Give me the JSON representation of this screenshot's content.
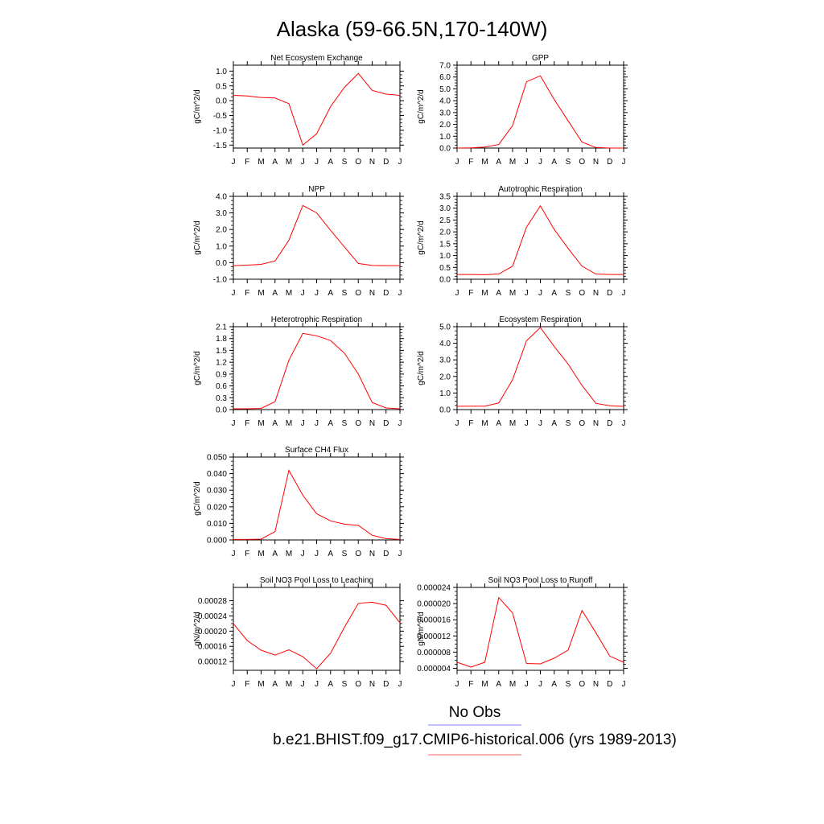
{
  "figure": {
    "title": "Alaska (59-66.5N,170-140W)",
    "legend": [
      {
        "label": "No Obs",
        "color": "#8080ff"
      },
      {
        "label": "b.e21.BHIST.f09_g17.CMIP6-historical.006 (yrs 1989-2013)",
        "color": "#ff6060"
      }
    ]
  },
  "chart_data": [
    {
      "type": "line",
      "title": "Net Ecosystem Exchange",
      "ylabel": "gC/m^2/d",
      "x": [
        "J",
        "F",
        "M",
        "A",
        "M",
        "J",
        "J",
        "A",
        "S",
        "O",
        "N",
        "D",
        "J"
      ],
      "ylim": [
        -1.6,
        1.2
      ],
      "yticks": [
        -1.5,
        -1.0,
        -0.5,
        0.0,
        0.5,
        1.0
      ],
      "ytick_labels": [
        "-1.5",
        "-1.0",
        "-0.5",
        "0.0",
        "0.5",
        "1.0"
      ],
      "series": [
        {
          "color": "#ff0000",
          "values": [
            0.18,
            0.16,
            0.11,
            0.09,
            -0.1,
            -1.5,
            -1.12,
            -0.2,
            0.45,
            0.92,
            0.35,
            0.22,
            0.18
          ]
        }
      ]
    },
    {
      "type": "line",
      "title": "GPP",
      "ylabel": "gC/m^2/d",
      "x": [
        "J",
        "F",
        "M",
        "A",
        "M",
        "J",
        "J",
        "A",
        "S",
        "O",
        "N",
        "D",
        "J"
      ],
      "ylim": [
        0.0,
        7.0
      ],
      "yticks": [
        0,
        1,
        2,
        3,
        4,
        5,
        6,
        7
      ],
      "ytick_labels": [
        "0.0",
        "1.0",
        "2.0",
        "3.0",
        "4.0",
        "5.0",
        "6.0",
        "7.0"
      ],
      "series": [
        {
          "color": "#ff0000",
          "values": [
            0.0,
            0.02,
            0.08,
            0.3,
            1.9,
            5.6,
            6.1,
            4.1,
            2.3,
            0.5,
            0.05,
            0.0,
            0.0
          ]
        }
      ]
    },
    {
      "type": "line",
      "title": "NPP",
      "ylabel": "gC/m^2/d",
      "x": [
        "J",
        "F",
        "M",
        "A",
        "M",
        "J",
        "J",
        "A",
        "S",
        "O",
        "N",
        "D",
        "J"
      ],
      "ylim": [
        -1.0,
        4.0
      ],
      "yticks": [
        -1,
        0,
        1,
        2,
        3,
        4
      ],
      "ytick_labels": [
        "-1.0",
        "0.0",
        "1.0",
        "2.0",
        "3.0",
        "4.0"
      ],
      "series": [
        {
          "color": "#ff0000",
          "values": [
            -0.18,
            -0.15,
            -0.1,
            0.1,
            1.35,
            3.45,
            3.0,
            1.95,
            0.95,
            -0.05,
            -0.17,
            -0.18,
            -0.18
          ]
        }
      ]
    },
    {
      "type": "line",
      "title": "Autotrophic Respiration",
      "ylabel": "gC/m^2/d",
      "x": [
        "J",
        "F",
        "M",
        "A",
        "M",
        "J",
        "J",
        "A",
        "S",
        "O",
        "N",
        "D",
        "J"
      ],
      "ylim": [
        0.0,
        3.5
      ],
      "yticks": [
        0,
        0.5,
        1,
        1.5,
        2,
        2.5,
        3,
        3.5
      ],
      "ytick_labels": [
        "0.0",
        "0.5",
        "1.0",
        "1.5",
        "2.0",
        "2.5",
        "3.0",
        "3.5"
      ],
      "series": [
        {
          "color": "#ff0000",
          "values": [
            0.2,
            0.2,
            0.19,
            0.22,
            0.55,
            2.2,
            3.1,
            2.1,
            1.3,
            0.55,
            0.22,
            0.2,
            0.2
          ]
        }
      ]
    },
    {
      "type": "line",
      "title": "Heterotrophic Respiration",
      "ylabel": "gC/m^2/d",
      "x": [
        "J",
        "F",
        "M",
        "A",
        "M",
        "J",
        "J",
        "A",
        "S",
        "O",
        "N",
        "D",
        "J"
      ],
      "ylim": [
        0.0,
        2.1
      ],
      "yticks": [
        0,
        0.3,
        0.6,
        0.9,
        1.2,
        1.5,
        1.8,
        2.1
      ],
      "ytick_labels": [
        "0.0",
        "0.3",
        "0.6",
        "0.9",
        "1.2",
        "1.5",
        "1.8",
        "2.1"
      ],
      "series": [
        {
          "color": "#ff0000",
          "values": [
            0.02,
            0.02,
            0.03,
            0.2,
            1.25,
            1.93,
            1.87,
            1.75,
            1.43,
            0.9,
            0.18,
            0.04,
            0.02
          ]
        }
      ]
    },
    {
      "type": "line",
      "title": "Ecosystem Respiration",
      "ylabel": "gC/m^2/d",
      "x": [
        "J",
        "F",
        "M",
        "A",
        "M",
        "J",
        "J",
        "A",
        "S",
        "O",
        "N",
        "D",
        "J"
      ],
      "ylim": [
        0.0,
        5.0
      ],
      "yticks": [
        0,
        1,
        2,
        3,
        4,
        5
      ],
      "ytick_labels": [
        "0.0",
        "1.0",
        "2.0",
        "3.0",
        "4.0",
        "5.0"
      ],
      "series": [
        {
          "color": "#ff0000",
          "values": [
            0.2,
            0.21,
            0.21,
            0.4,
            1.8,
            4.15,
            4.95,
            3.8,
            2.75,
            1.45,
            0.38,
            0.23,
            0.2
          ]
        }
      ]
    },
    {
      "type": "line",
      "title": "Surface CH4 Flux",
      "ylabel": "gC/m^2/d",
      "x": [
        "J",
        "F",
        "M",
        "A",
        "M",
        "J",
        "J",
        "A",
        "S",
        "O",
        "N",
        "D",
        "J"
      ],
      "ylim": [
        0.0,
        0.05
      ],
      "yticks": [
        0,
        0.01,
        0.02,
        0.03,
        0.04,
        0.05
      ],
      "ytick_labels": [
        "0.000",
        "0.010",
        "0.020",
        "0.030",
        "0.040",
        "0.050"
      ],
      "series": [
        {
          "color": "#ff0000",
          "values": [
            0.0003,
            0.0003,
            0.0005,
            0.005,
            0.042,
            0.027,
            0.0158,
            0.0115,
            0.0095,
            0.0088,
            0.0028,
            0.0008,
            0.0003
          ]
        }
      ]
    },
    {
      "type": "line",
      "title": "Soil NO3 Pool Loss to Leaching",
      "ylabel": "gN/m^2/d",
      "x": [
        "J",
        "F",
        "M",
        "A",
        "M",
        "J",
        "J",
        "A",
        "S",
        "O",
        "N",
        "D",
        "J"
      ],
      "ylim": [
        9.7e-05,
        0.000315
      ],
      "yticks": [
        0.00012,
        0.00016,
        0.0002,
        0.00024,
        0.00028
      ],
      "ytick_labels": [
        "0.00012",
        "0.00016",
        "0.00020",
        "0.00024",
        "0.00028"
      ],
      "series": [
        {
          "color": "#ff0000",
          "values": [
            0.00022,
            0.000175,
            0.00015,
            0.000137,
            0.000151,
            0.000133,
            0.000101,
            0.000142,
            0.00021,
            0.000273,
            0.000276,
            0.000268,
            0.000222
          ]
        }
      ]
    },
    {
      "type": "line",
      "title": "Soil NO3 Pool Loss to Runoff",
      "ylabel": "gN/m^2/d",
      "x": [
        "J",
        "F",
        "M",
        "A",
        "M",
        "J",
        "J",
        "A",
        "S",
        "O",
        "N",
        "D",
        "J"
      ],
      "ylim": [
        3.5e-06,
        2.4e-05
      ],
      "yticks": [
        4e-06,
        8e-06,
        1.2e-05,
        1.6e-05,
        2e-05,
        2.4e-05
      ],
      "ytick_labels": [
        "0.000004",
        "0.000008",
        "0.000012",
        "0.000016",
        "0.000020",
        "0.000024"
      ],
      "series": [
        {
          "color": "#ff0000",
          "values": [
            5.5e-06,
            4.3e-06,
            5.5e-06,
            2.15e-05,
            1.77e-05,
            5.2e-06,
            5.1e-06,
            6.5e-06,
            8.5e-06,
            1.83e-05,
            1.28e-05,
            7e-06,
            5.5e-06
          ]
        }
      ]
    }
  ]
}
